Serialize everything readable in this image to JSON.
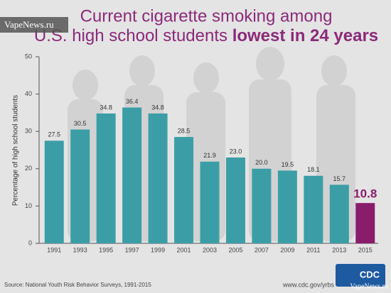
{
  "chart_data": {
    "type": "bar",
    "title": "Current cigarette smoking among",
    "title_line2": "U.S. high school students",
    "title_highlight": "lowest in 24 years",
    "y_label": "Percentage of high school students",
    "source": "Source: National Youth Risk Behavior Surveys, 1991-2015",
    "url": "www.cdc.gov/yrbs",
    "logo": "CDC",
    "watermark": "VapeNews.ru",
    "categories": [
      "1991",
      "1993",
      "1995",
      "1997",
      "1999",
      "2001",
      "2003",
      "2005",
      "2007",
      "2009",
      "2011",
      "2013",
      "2015"
    ],
    "values": [
      27.5,
      30.5,
      34.8,
      36.4,
      34.8,
      28.5,
      21.9,
      23.0,
      20.0,
      19.5,
      18.1,
      15.7,
      10.8
    ],
    "value_labels": [
      "27.5",
      "30.5",
      "34.8",
      "36.4",
      "34.8",
      "28.5",
      "21.9",
      "23.0",
      "20.0",
      "19.5",
      "18.1",
      "15.7",
      "10.8"
    ],
    "colors": [
      "#3b9ea6",
      "#3b9ea6",
      "#3b9ea6",
      "#3b9ea6",
      "#3b9ea6",
      "#3b9ea6",
      "#3b9ea6",
      "#3b9ea6",
      "#3b9ea6",
      "#3b9ea6",
      "#3b9ea6",
      "#3b9ea6",
      "#8a1c6c"
    ],
    "ylim": [
      0,
      50
    ],
    "yticks": [
      0,
      10,
      20,
      30,
      40,
      50
    ],
    "grid": false
  }
}
